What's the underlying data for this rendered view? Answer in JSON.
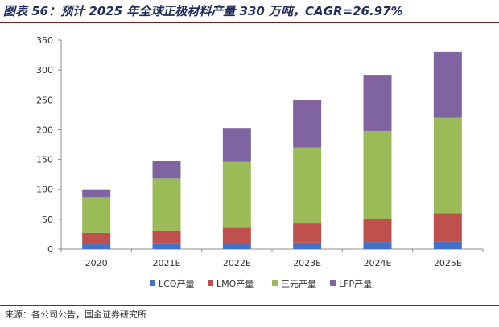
{
  "figure": {
    "title": "图表 56：预计 2025 年全球正极材料产量 330 万吨，CAGR=26.97%",
    "source": "来源：各公司公告，国金证券研究所"
  },
  "chart_data": {
    "type": "bar",
    "stacked": true,
    "title": "",
    "xlabel": "",
    "ylabel": "",
    "ylim": [
      0,
      350
    ],
    "yticks": [
      0,
      50,
      100,
      150,
      200,
      250,
      300,
      350
    ],
    "grid": false,
    "legend_position": "bottom",
    "categories": [
      "2020",
      "2021E",
      "2022E",
      "2023E",
      "2024E",
      "2025E"
    ],
    "series": [
      {
        "name": "LCO产量",
        "color": "#4472c4",
        "values": [
          8,
          9,
          10,
          11,
          12,
          13
        ]
      },
      {
        "name": "LMO产量",
        "color": "#c0504d",
        "values": [
          19,
          22,
          26,
          32,
          38,
          47
        ]
      },
      {
        "name": "三元产量",
        "color": "#9bbb59",
        "values": [
          60,
          87,
          110,
          127,
          148,
          160
        ]
      },
      {
        "name": "LFP产量",
        "color": "#8064a2",
        "values": [
          13,
          30,
          57,
          80,
          94,
          110
        ]
      }
    ]
  }
}
